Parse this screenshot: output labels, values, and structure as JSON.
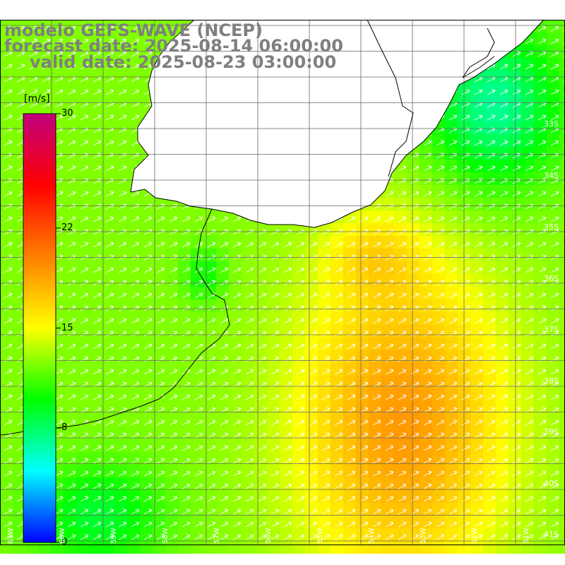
{
  "header": {
    "line1": "modelo GEFS-WAVE (NCEP)",
    "line2": "forecast date: 2025-08-14 06:00:00",
    "line3": "valid date: 2025-08-23 03:00:00"
  },
  "colorbar": {
    "unit": "[m/s]",
    "ticks": [
      {
        "value": 0,
        "label": "0"
      },
      {
        "value": 8,
        "label": "8"
      },
      {
        "value": 15,
        "label": "15"
      },
      {
        "value": 22,
        "label": "22"
      },
      {
        "value": 30,
        "label": "30"
      }
    ],
    "range": [
      0,
      30
    ],
    "colors": [
      "#0000ff",
      "#00ffff",
      "#00ff00",
      "#ffff00",
      "#ff7f00",
      "#ff0000",
      "#c0007f"
    ]
  },
  "map": {
    "lat_labels": [
      "33S",
      "34S",
      "35S",
      "36S",
      "37S",
      "38S",
      "39S",
      "40S",
      "41S"
    ],
    "lon_labels": [
      "61W",
      "60W",
      "59W",
      "58W",
      "57W",
      "56W",
      "55W",
      "54W",
      "53W",
      "52W",
      "51W"
    ],
    "grid": true,
    "field": "wind speed with direction arrows",
    "land_color": "#ffffff",
    "coast_color": "#000000"
  }
}
